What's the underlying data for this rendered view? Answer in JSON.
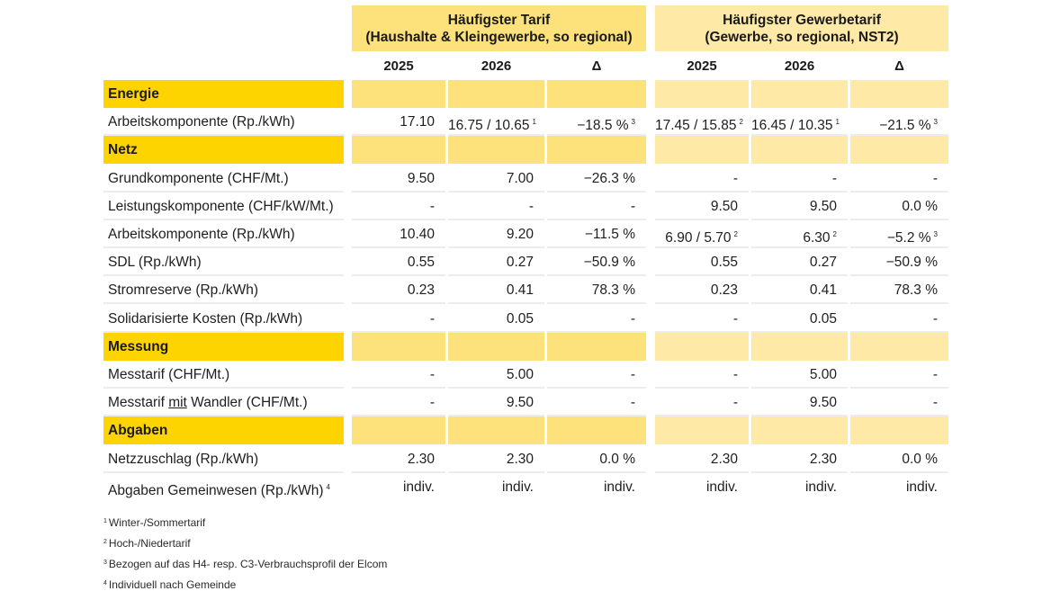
{
  "groups": [
    {
      "title": "Häufigster Tarif",
      "subtitle": "(Haushalte & Kleingewerbe, so regional)"
    },
    {
      "title": "Häufigster Gewerbetarif",
      "subtitle": "(Gewerbe, so regional, NST2)"
    }
  ],
  "columns": [
    "2025",
    "2026",
    "Δ",
    "2025",
    "2026",
    "Δ"
  ],
  "colors": {
    "section_label": "#fdd300",
    "group1_fill": "#fde17a",
    "group2_fill": "#fee9a6"
  },
  "rows": [
    {
      "type": "section",
      "label": "Energie"
    },
    {
      "type": "data",
      "label": "Arbeitskomponente (Rp./kWh)",
      "cells": [
        {
          "v": "17.10",
          "n": ""
        },
        {
          "v": "16.75 / 10.65",
          "n": "1"
        },
        {
          "v": "−18.5 %",
          "n": "3"
        },
        {
          "v": "17.45 / 15.85",
          "n": "2"
        },
        {
          "v": "16.45 / 10.35",
          "n": "1"
        },
        {
          "v": "−21.5 %",
          "n": "3"
        }
      ]
    },
    {
      "type": "section",
      "label": "Netz"
    },
    {
      "type": "data",
      "label": "Grundkomponente (CHF/Mt.)",
      "cells": [
        {
          "v": "9.50",
          "n": ""
        },
        {
          "v": "7.00",
          "n": ""
        },
        {
          "v": "−26.3 %",
          "n": ""
        },
        {
          "v": "-",
          "n": ""
        },
        {
          "v": "-",
          "n": ""
        },
        {
          "v": "-",
          "n": ""
        }
      ]
    },
    {
      "type": "data",
      "label": "Leistungskomponente (CHF/kW/Mt.)",
      "cells": [
        {
          "v": "-",
          "n": ""
        },
        {
          "v": "-",
          "n": ""
        },
        {
          "v": "-",
          "n": ""
        },
        {
          "v": "9.50",
          "n": ""
        },
        {
          "v": "9.50",
          "n": ""
        },
        {
          "v": "0.0 %",
          "n": ""
        }
      ]
    },
    {
      "type": "data",
      "label": "Arbeitskomponente (Rp./kWh)",
      "cells": [
        {
          "v": "10.40",
          "n": ""
        },
        {
          "v": "9.20",
          "n": ""
        },
        {
          "v": "−11.5 %",
          "n": ""
        },
        {
          "v": "6.90 / 5.70",
          "n": "2"
        },
        {
          "v": "6.30",
          "n": "2"
        },
        {
          "v": "−5.2 %",
          "n": "3"
        }
      ]
    },
    {
      "type": "data",
      "label": "SDL (Rp./kWh)",
      "cells": [
        {
          "v": "0.55",
          "n": ""
        },
        {
          "v": "0.27",
          "n": ""
        },
        {
          "v": "−50.9 %",
          "n": ""
        },
        {
          "v": "0.55",
          "n": ""
        },
        {
          "v": "0.27",
          "n": ""
        },
        {
          "v": "−50.9 %",
          "n": ""
        }
      ]
    },
    {
      "type": "data",
      "label": "Stromreserve (Rp./kWh)",
      "cells": [
        {
          "v": "0.23",
          "n": ""
        },
        {
          "v": "0.41",
          "n": ""
        },
        {
          "v": "78.3 %",
          "n": ""
        },
        {
          "v": "0.23",
          "n": ""
        },
        {
          "v": "0.41",
          "n": ""
        },
        {
          "v": "78.3 %",
          "n": ""
        }
      ]
    },
    {
      "type": "data",
      "label": "Solidarisierte Kosten (Rp./kWh)",
      "cells": [
        {
          "v": "-",
          "n": ""
        },
        {
          "v": "0.05",
          "n": ""
        },
        {
          "v": "-",
          "n": ""
        },
        {
          "v": "-",
          "n": ""
        },
        {
          "v": "0.05",
          "n": ""
        },
        {
          "v": "-",
          "n": ""
        }
      ]
    },
    {
      "type": "section",
      "label": "Messung"
    },
    {
      "type": "data",
      "label": "Messtarif (CHF/Mt.)",
      "cells": [
        {
          "v": "-",
          "n": ""
        },
        {
          "v": "5.00",
          "n": ""
        },
        {
          "v": "-",
          "n": ""
        },
        {
          "v": "-",
          "n": ""
        },
        {
          "v": "5.00",
          "n": ""
        },
        {
          "v": "-",
          "n": ""
        }
      ]
    },
    {
      "type": "data",
      "label_parts": [
        "Messtarif ",
        "mit",
        " Wandler (CHF/Mt.)"
      ],
      "cells": [
        {
          "v": "-",
          "n": ""
        },
        {
          "v": "9.50",
          "n": ""
        },
        {
          "v": "-",
          "n": ""
        },
        {
          "v": "-",
          "n": ""
        },
        {
          "v": "9.50",
          "n": ""
        },
        {
          "v": "-",
          "n": ""
        }
      ]
    },
    {
      "type": "section",
      "label": "Abgaben"
    },
    {
      "type": "data",
      "label": "Netzzuschlag (Rp./kWh)",
      "cells": [
        {
          "v": "2.30",
          "n": ""
        },
        {
          "v": "2.30",
          "n": ""
        },
        {
          "v": "0.0 %",
          "n": ""
        },
        {
          "v": "2.30",
          "n": ""
        },
        {
          "v": "2.30",
          "n": ""
        },
        {
          "v": "0.0 %",
          "n": ""
        }
      ]
    },
    {
      "type": "data",
      "label": "Abgaben Gemeinwesen (Rp./kWh)",
      "label_note": "4",
      "cells": [
        {
          "v": "indiv.",
          "n": ""
        },
        {
          "v": "indiv.",
          "n": ""
        },
        {
          "v": "indiv.",
          "n": ""
        },
        {
          "v": "indiv.",
          "n": ""
        },
        {
          "v": "indiv.",
          "n": ""
        },
        {
          "v": "indiv.",
          "n": ""
        }
      ]
    }
  ],
  "footnotes": [
    {
      "n": "1",
      "text": "Winter-/Sommertarif"
    },
    {
      "n": "2",
      "text": "Hoch-/Niedertarif"
    },
    {
      "n": "3",
      "text": "Bezogen auf das H4- resp. C3-Verbrauchsprofil der Elcom"
    },
    {
      "n": "4",
      "text": "Individuell nach Gemeinde"
    }
  ]
}
